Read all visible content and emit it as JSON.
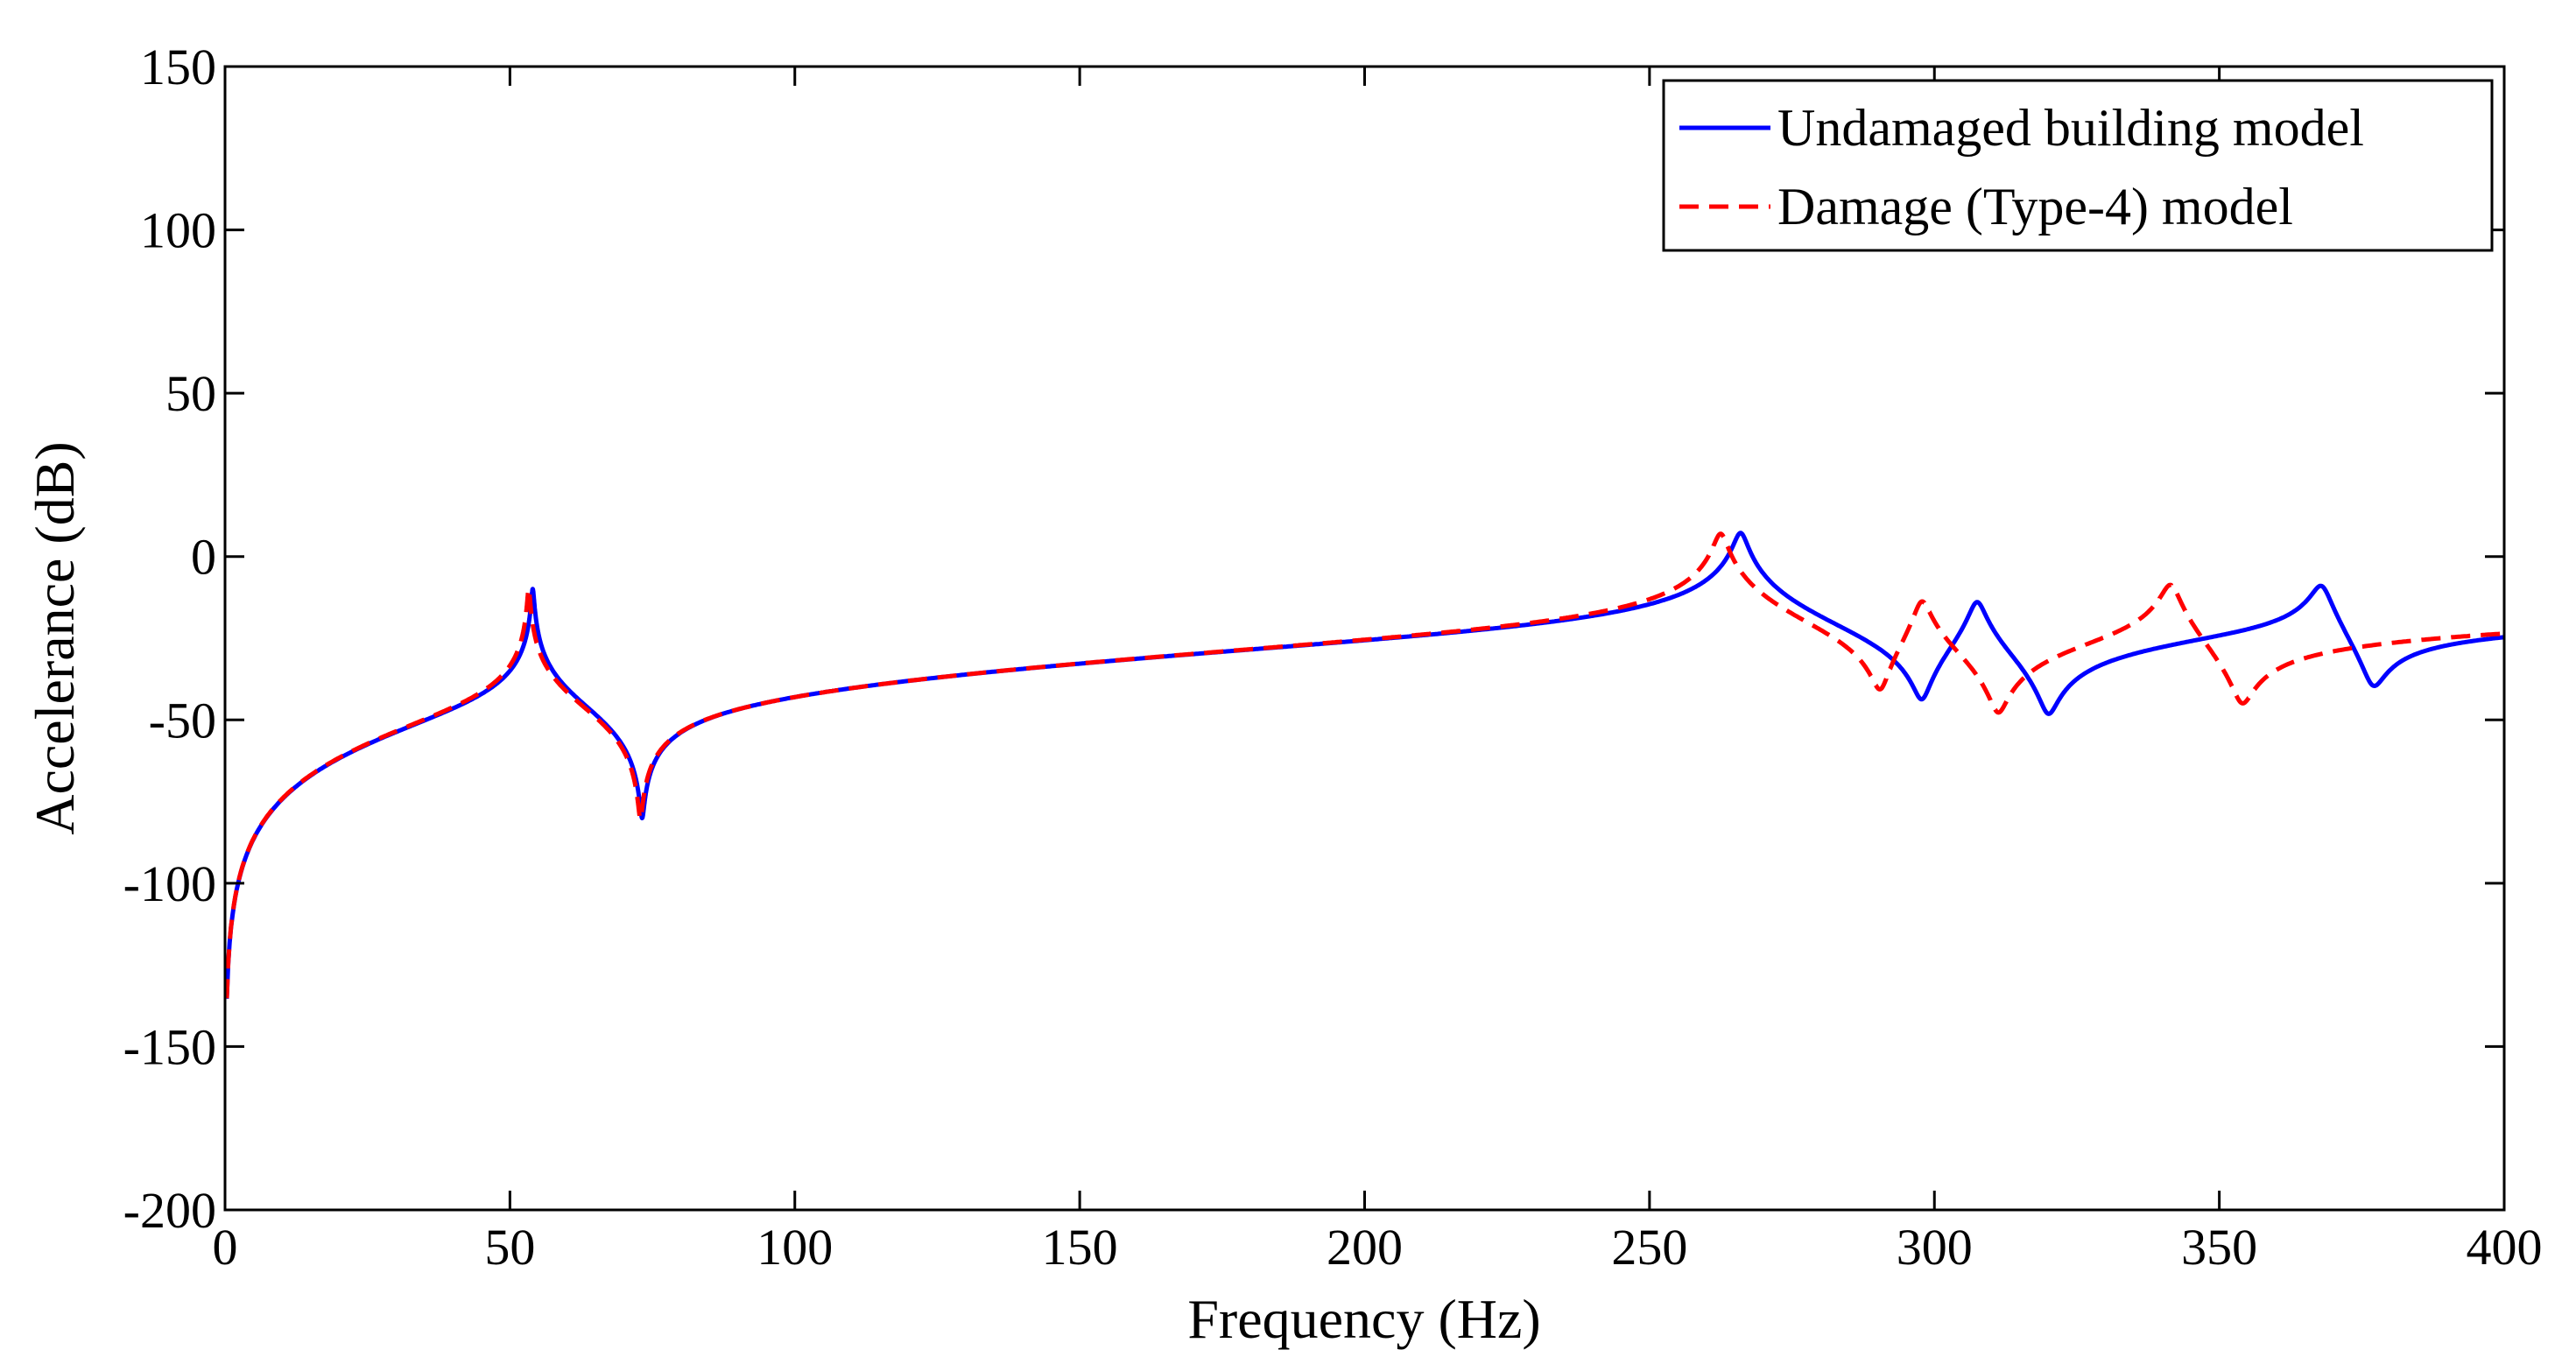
{
  "chart_data": {
    "type": "line",
    "title": "",
    "xlabel": "Frequency (Hz)",
    "ylabel": "Accelerance (dB)",
    "xlim": [
      0,
      400
    ],
    "ylim": [
      -200,
      150
    ],
    "xticks": [
      0,
      50,
      100,
      150,
      200,
      250,
      300,
      350,
      400
    ],
    "xtick_labels": [
      "0",
      "50",
      "100",
      "150",
      "200",
      "250",
      "300",
      "350",
      "400"
    ],
    "yticks": [
      150,
      100,
      50,
      0,
      -50,
      -100,
      -150,
      -200
    ],
    "ytick_labels": [
      "150",
      "100",
      "50",
      "0",
      "-50",
      "-100",
      "-150",
      "-200"
    ],
    "grid": false,
    "legend_position": "top-right",
    "series": [
      {
        "name": "Undamaged building model",
        "color": "#0000ff",
        "style": "solid",
        "resonances": [
          54,
          266,
          307.5,
          368
        ],
        "antiresonances": [
          73.2,
          297.8,
          320,
          377
        ]
      },
      {
        "name": "Damage (Type-4) model",
        "color": "#ff0000",
        "style": "dashed",
        "resonances": [
          53.3,
          262.5,
          297.8,
          341.5
        ],
        "antiresonances": [
          72.9,
          290.5,
          311.2,
          354
        ]
      }
    ]
  }
}
